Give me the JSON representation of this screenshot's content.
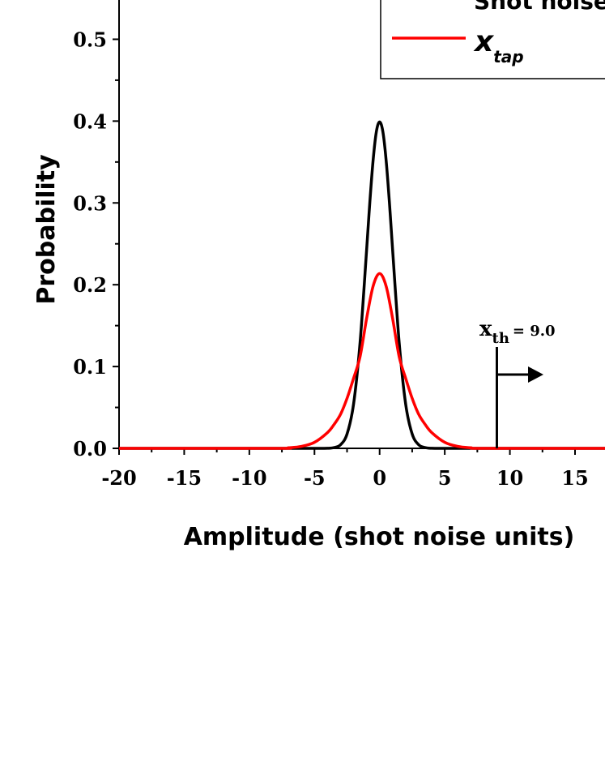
{
  "chart_data": {
    "type": "line",
    "title": "",
    "xlabel": "Amplitude (shot noise units)",
    "ylabel": "Probability",
    "xlim": [
      -20,
      17.3
    ],
    "ylim": [
      0,
      0.55
    ],
    "x_ticks": [
      -20,
      -15,
      -10,
      -5,
      0,
      5,
      10,
      15
    ],
    "y_ticks": [
      0.0,
      0.1,
      0.2,
      0.3,
      0.4,
      0.5
    ],
    "x_tick_labels": [
      "-20",
      "-15",
      "-10",
      "-5",
      "0",
      "5",
      "10",
      "15"
    ],
    "y_tick_labels": [
      "0.0",
      "0.1",
      "0.2",
      "0.3",
      "0.4",
      "0.5"
    ],
    "grid": false,
    "legend_position": "top-right",
    "series": [
      {
        "name": "Shot noise",
        "color": "#000000",
        "x": [
          -20,
          -8,
          -6,
          -5,
          -4,
          -3.5,
          -3,
          -2.5,
          -2,
          -1.5,
          -1,
          -0.75,
          -0.5,
          -0.25,
          0,
          0.25,
          0.5,
          0.75,
          1,
          1.5,
          2,
          2.5,
          3,
          3.5,
          4,
          5,
          6,
          8,
          17.3
        ],
        "y": [
          0,
          0,
          0,
          0,
          0.0001,
          0.0009,
          0.0044,
          0.0175,
          0.054,
          0.1295,
          0.242,
          0.301,
          0.352,
          0.387,
          0.399,
          0.387,
          0.352,
          0.301,
          0.242,
          0.1295,
          0.054,
          0.0175,
          0.0044,
          0.0009,
          0.0001,
          0,
          0,
          0,
          0
        ]
      },
      {
        "name": "x_tap",
        "color": "#ff0000",
        "x": [
          -20,
          -8,
          -7,
          -6,
          -5,
          -4,
          -3.5,
          -3,
          -2.5,
          -2,
          -1.5,
          -1,
          -0.5,
          0,
          0.5,
          1,
          1.5,
          2,
          2.5,
          3,
          3.5,
          4,
          5,
          6,
          7,
          8,
          17.3
        ],
        "y": [
          0,
          0,
          0.0007,
          0.0024,
          0.0074,
          0.0193,
          0.0291,
          0.0416,
          0.0611,
          0.0856,
          0.1121,
          0.1585,
          0.1982,
          0.2137,
          0.1982,
          0.1585,
          0.1121,
          0.0856,
          0.0611,
          0.0416,
          0.0291,
          0.0193,
          0.0074,
          0.0024,
          0.0007,
          0,
          0
        ]
      }
    ],
    "legend": {
      "entries": [
        {
          "label": "Shot noise",
          "color": "#000000"
        },
        {
          "label_main": "x",
          "label_sub": "tap",
          "color": "#ff0000"
        }
      ]
    },
    "annotation": {
      "label_main": "x",
      "label_sub": "th",
      "label_rest": "= 9.0",
      "x": 9.0
    }
  }
}
